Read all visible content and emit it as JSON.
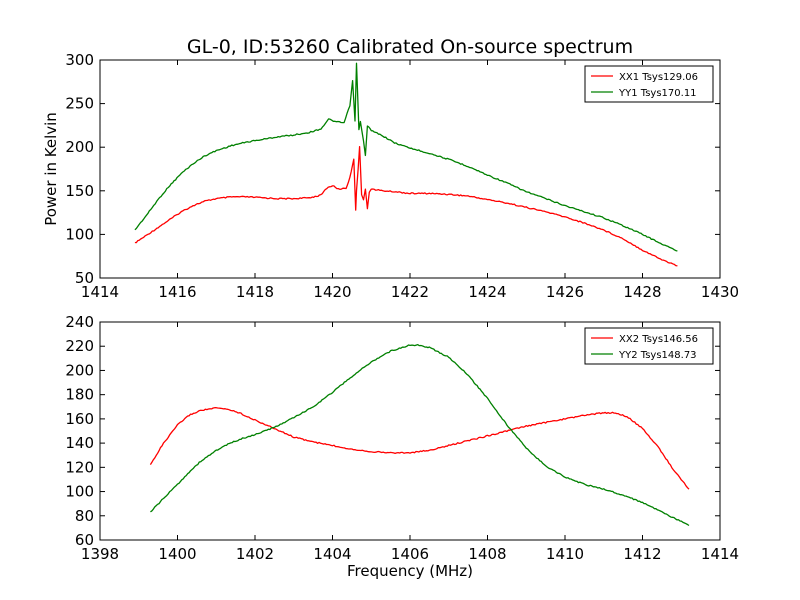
{
  "figure": {
    "title": "GL-0, ID:53260 Calibrated On-source spectrum",
    "ylabel": "Power in Kelvin",
    "xlabel": "Frequency (MHz)"
  },
  "chart_data": [
    {
      "type": "line",
      "title": "GL-0, ID:53260 Calibrated On-source spectrum",
      "xlabel": "",
      "ylabel": "Power in Kelvin",
      "xlim": [
        1414,
        1430
      ],
      "ylim": [
        50,
        300
      ],
      "xticks": [
        1414,
        1416,
        1418,
        1420,
        1422,
        1424,
        1426,
        1428,
        1430
      ],
      "yticks": [
        50,
        100,
        150,
        200,
        250,
        300
      ],
      "legend_position": "top-right",
      "series": [
        {
          "name": "XX1 Tsys129.06",
          "color": "#ff0000",
          "x": [
            1414.9,
            1415.2,
            1415.5,
            1415.8,
            1416.1,
            1416.4,
            1416.7,
            1417.0,
            1417.4,
            1417.8,
            1418.2,
            1418.6,
            1419.0,
            1419.4,
            1419.7,
            1419.85,
            1420.0,
            1420.15,
            1420.35,
            1420.45,
            1420.55,
            1420.6,
            1420.62,
            1420.7,
            1420.75,
            1420.8,
            1420.85,
            1420.9,
            1420.95,
            1421.0,
            1421.3,
            1421.6,
            1422.0,
            1422.5,
            1423.0,
            1423.5,
            1424.0,
            1424.5,
            1425.0,
            1425.5,
            1426.0,
            1426.5,
            1427.0,
            1427.5,
            1428.0,
            1428.5,
            1428.9
          ],
          "y": [
            90,
            99,
            108,
            117,
            126,
            133,
            138,
            141,
            143,
            143,
            142,
            141,
            141,
            142,
            145,
            153,
            156,
            152,
            153,
            165,
            187,
            128,
            150,
            200,
            145,
            140,
            152,
            130,
            149,
            152,
            150,
            149,
            147,
            147,
            146,
            144,
            140,
            136,
            131,
            126,
            120,
            113,
            105,
            95,
            82,
            71,
            64
          ]
        },
        {
          "name": "YY1 Tsys170.11",
          "color": "#008000",
          "x": [
            1414.9,
            1415.2,
            1415.5,
            1415.8,
            1416.1,
            1416.4,
            1416.7,
            1417.0,
            1417.4,
            1417.8,
            1418.2,
            1418.6,
            1419.0,
            1419.4,
            1419.7,
            1419.9,
            1420.1,
            1420.3,
            1420.45,
            1420.52,
            1420.58,
            1420.62,
            1420.68,
            1420.72,
            1420.8,
            1420.85,
            1420.9,
            1421.0,
            1421.3,
            1421.6,
            1422.0,
            1422.5,
            1423.0,
            1423.5,
            1424.0,
            1424.5,
            1425.0,
            1425.5,
            1426.0,
            1426.5,
            1427.0,
            1427.5,
            1428.0,
            1428.5,
            1428.9
          ],
          "y": [
            105,
            122,
            140,
            156,
            170,
            181,
            190,
            196,
            202,
            206,
            209,
            212,
            214,
            217,
            221,
            232,
            229,
            228,
            248,
            276,
            230,
            296,
            220,
            230,
            207,
            190,
            225,
            219,
            213,
            205,
            199,
            193,
            186,
            178,
            168,
            159,
            149,
            141,
            133,
            126,
            119,
            110,
            100,
            89,
            81
          ]
        }
      ]
    },
    {
      "type": "line",
      "title": "",
      "xlabel": "Frequency (MHz)",
      "ylabel": "",
      "xlim": [
        1398,
        1414
      ],
      "ylim": [
        60,
        240
      ],
      "xticks": [
        1398,
        1400,
        1402,
        1404,
        1406,
        1408,
        1410,
        1412,
        1414
      ],
      "yticks": [
        60,
        80,
        100,
        120,
        140,
        160,
        180,
        200,
        220,
        240
      ],
      "legend_position": "top-right",
      "series": [
        {
          "name": "XX2 Tsys146.56",
          "color": "#ff0000",
          "x": [
            1399.3,
            1399.6,
            1400.0,
            1400.3,
            1400.6,
            1401.0,
            1401.3,
            1401.6,
            1402.0,
            1402.5,
            1403.0,
            1403.5,
            1404.0,
            1404.5,
            1405.0,
            1405.5,
            1406.0,
            1406.5,
            1407.0,
            1407.5,
            1408.0,
            1408.5,
            1409.0,
            1409.5,
            1410.0,
            1410.5,
            1411.0,
            1411.3,
            1411.6,
            1412.0,
            1412.4,
            1412.8,
            1413.2
          ],
          "y": [
            122,
            138,
            155,
            163,
            167,
            169,
            168,
            165,
            159,
            152,
            145,
            141,
            138,
            135,
            133,
            132,
            132,
            134,
            138,
            142,
            146,
            150,
            154,
            157,
            160,
            163,
            165,
            165,
            162,
            152,
            137,
            118,
            102
          ]
        },
        {
          "name": "YY2 Tsys148.73",
          "color": "#008000",
          "x": [
            1399.3,
            1399.6,
            1400.0,
            1400.3,
            1400.6,
            1401.0,
            1401.3,
            1401.6,
            1402.0,
            1402.5,
            1403.0,
            1403.5,
            1404.0,
            1404.5,
            1405.0,
            1405.5,
            1405.8,
            1406.0,
            1406.2,
            1406.5,
            1407.0,
            1407.5,
            1408.0,
            1408.5,
            1409.0,
            1409.5,
            1410.0,
            1410.5,
            1411.0,
            1411.5,
            1412.0,
            1412.5,
            1413.2
          ],
          "y": [
            83,
            93,
            106,
            116,
            125,
            134,
            139,
            143,
            147,
            153,
            161,
            170,
            182,
            195,
            207,
            216,
            219,
            221,
            221,
            219,
            211,
            196,
            177,
            155,
            136,
            121,
            112,
            106,
            102,
            97,
            91,
            83,
            72
          ]
        }
      ]
    }
  ]
}
